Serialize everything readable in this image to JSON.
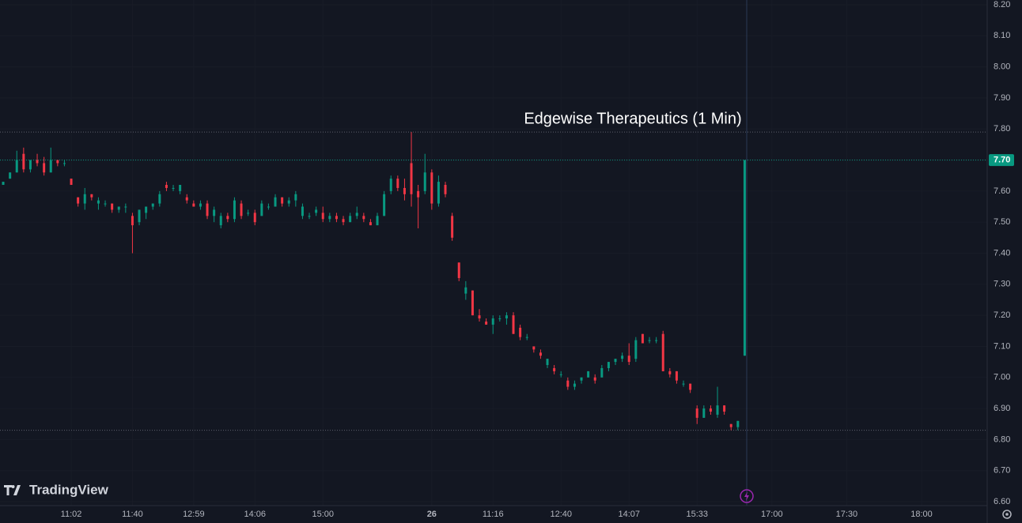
{
  "chart_data": {
    "type": "candlestick",
    "title": "Edgewise Therapeutics (1 Min)",
    "brand": "TradingView",
    "up_color": "#089981",
    "down_color": "#f23645",
    "candles": [
      [
        7.62,
        7.63,
        7.62,
        7.63
      ],
      [
        7.64,
        7.66,
        7.64,
        7.66
      ],
      [
        7.66,
        7.73,
        7.66,
        7.7
      ],
      [
        7.72,
        7.74,
        7.66,
        7.67
      ],
      [
        7.67,
        7.7,
        7.66,
        7.7
      ],
      [
        7.7,
        7.72,
        7.68,
        7.69
      ],
      [
        7.69,
        7.71,
        7.65,
        7.66
      ],
      [
        7.66,
        7.74,
        7.66,
        7.7
      ],
      [
        7.7,
        7.7,
        7.68,
        7.69
      ],
      [
        7.69,
        7.7,
        7.68,
        7.69
      ],
      [
        7.64,
        7.64,
        7.62,
        7.62
      ],
      [
        7.58,
        7.58,
        7.55,
        7.56
      ],
      [
        7.56,
        7.61,
        7.54,
        7.59
      ],
      [
        7.59,
        7.59,
        7.57,
        7.58
      ],
      [
        7.56,
        7.58,
        7.54,
        7.57
      ],
      [
        7.56,
        7.57,
        7.55,
        7.56
      ],
      [
        7.56,
        7.56,
        7.53,
        7.54
      ],
      [
        7.54,
        7.55,
        7.53,
        7.55
      ],
      [
        7.55,
        7.56,
        7.53,
        7.55
      ],
      [
        7.52,
        7.53,
        7.4,
        7.49
      ],
      [
        7.5,
        7.54,
        7.49,
        7.54
      ],
      [
        7.53,
        7.55,
        7.51,
        7.55
      ],
      [
        7.55,
        7.56,
        7.54,
        7.56
      ],
      [
        7.56,
        7.6,
        7.55,
        7.59
      ],
      [
        7.62,
        7.63,
        7.6,
        7.61
      ],
      [
        7.61,
        7.62,
        7.6,
        7.61
      ],
      [
        7.6,
        7.62,
        7.59,
        7.62
      ],
      [
        7.58,
        7.59,
        7.56,
        7.57
      ],
      [
        7.56,
        7.57,
        7.55,
        7.55
      ],
      [
        7.55,
        7.57,
        7.54,
        7.56
      ],
      [
        7.56,
        7.57,
        7.51,
        7.52
      ],
      [
        7.52,
        7.55,
        7.5,
        7.54
      ],
      [
        7.49,
        7.53,
        7.48,
        7.52
      ],
      [
        7.52,
        7.53,
        7.5,
        7.51
      ],
      [
        7.51,
        7.58,
        7.5,
        7.57
      ],
      [
        7.56,
        7.57,
        7.51,
        7.52
      ],
      [
        7.53,
        7.54,
        7.52,
        7.53
      ],
      [
        7.53,
        7.54,
        7.49,
        7.5
      ],
      [
        7.52,
        7.57,
        7.52,
        7.56
      ],
      [
        7.55,
        7.56,
        7.54,
        7.55
      ],
      [
        7.55,
        7.59,
        7.55,
        7.58
      ],
      [
        7.58,
        7.58,
        7.55,
        7.56
      ],
      [
        7.56,
        7.58,
        7.55,
        7.57
      ],
      [
        7.57,
        7.6,
        7.55,
        7.59
      ],
      [
        7.52,
        7.56,
        7.51,
        7.55
      ],
      [
        7.52,
        7.53,
        7.51,
        7.52
      ],
      [
        7.53,
        7.55,
        7.52,
        7.54
      ],
      [
        7.53,
        7.55,
        7.5,
        7.51
      ],
      [
        7.51,
        7.53,
        7.5,
        7.52
      ],
      [
        7.52,
        7.53,
        7.5,
        7.51
      ],
      [
        7.51,
        7.52,
        7.49,
        7.5
      ],
      [
        7.5,
        7.53,
        7.5,
        7.52
      ],
      [
        7.52,
        7.55,
        7.51,
        7.53
      ],
      [
        7.52,
        7.53,
        7.5,
        7.51
      ],
      [
        7.5,
        7.51,
        7.49,
        7.49
      ],
      [
        7.49,
        7.53,
        7.49,
        7.52
      ],
      [
        7.52,
        7.6,
        7.52,
        7.59
      ],
      [
        7.6,
        7.65,
        7.59,
        7.64
      ],
      [
        7.64,
        7.65,
        7.6,
        7.61
      ],
      [
        7.61,
        7.64,
        7.57,
        7.59
      ],
      [
        7.69,
        7.79,
        7.55,
        7.59
      ],
      [
        7.6,
        7.62,
        7.48,
        7.58
      ],
      [
        7.6,
        7.72,
        7.59,
        7.66
      ],
      [
        7.66,
        7.67,
        7.54,
        7.56
      ],
      [
        7.56,
        7.65,
        7.55,
        7.63
      ],
      [
        7.62,
        7.63,
        7.58,
        7.59
      ],
      [
        7.52,
        7.53,
        7.44,
        7.45
      ],
      [
        7.37,
        7.37,
        7.31,
        7.32
      ],
      [
        7.27,
        7.31,
        7.25,
        7.29
      ],
      [
        7.28,
        7.28,
        7.2,
        7.2
      ],
      [
        7.2,
        7.22,
        7.18,
        7.19
      ],
      [
        7.18,
        7.19,
        7.17,
        7.17
      ],
      [
        7.17,
        7.2,
        7.14,
        7.19
      ],
      [
        7.19,
        7.2,
        7.18,
        7.19
      ],
      [
        7.19,
        7.21,
        7.17,
        7.2
      ],
      [
        7.2,
        7.21,
        7.14,
        7.14
      ],
      [
        7.16,
        7.17,
        7.12,
        7.13
      ],
      [
        7.13,
        7.14,
        7.12,
        7.13
      ],
      [
        7.1,
        7.1,
        7.08,
        7.09
      ],
      [
        7.08,
        7.09,
        7.06,
        7.07
      ],
      [
        7.04,
        7.06,
        7.03,
        7.06
      ],
      [
        7.03,
        7.04,
        7.01,
        7.02
      ],
      [
        7.01,
        7.02,
        7.0,
        7.01
      ],
      [
        6.99,
        7.0,
        6.96,
        6.97
      ],
      [
        6.97,
        6.99,
        6.96,
        6.98
      ],
      [
        6.99,
        7.0,
        6.98,
        7.0
      ],
      [
        7.0,
        7.02,
        7.0,
        7.02
      ],
      [
        7.0,
        7.01,
        6.98,
        6.99
      ],
      [
        7.0,
        7.04,
        7.0,
        7.03
      ],
      [
        7.03,
        7.05,
        7.02,
        7.05
      ],
      [
        7.05,
        7.06,
        7.04,
        7.06
      ],
      [
        7.06,
        7.08,
        7.05,
        7.07
      ],
      [
        7.07,
        7.11,
        7.04,
        7.05
      ],
      [
        7.06,
        7.13,
        7.05,
        7.12
      ],
      [
        7.14,
        7.14,
        7.11,
        7.11
      ],
      [
        7.12,
        7.13,
        7.11,
        7.12
      ],
      [
        7.12,
        7.13,
        7.11,
        7.12
      ],
      [
        7.14,
        7.15,
        7.02,
        7.02
      ],
      [
        7.02,
        7.03,
        7.0,
        7.01
      ],
      [
        7.02,
        7.02,
        6.98,
        6.99
      ],
      [
        6.98,
        6.99,
        6.97,
        6.98
      ],
      [
        6.98,
        6.98,
        6.95,
        6.96
      ],
      [
        6.9,
        6.91,
        6.85,
        6.87
      ],
      [
        6.87,
        6.91,
        6.87,
        6.9
      ],
      [
        6.9,
        6.91,
        6.88,
        6.89
      ],
      [
        6.88,
        6.97,
        6.87,
        6.91
      ],
      [
        6.91,
        6.91,
        6.88,
        6.89
      ],
      [
        6.85,
        6.85,
        6.83,
        6.84
      ],
      [
        6.84,
        6.86,
        6.83,
        6.86
      ],
      [
        7.07,
        7.7,
        7.07,
        7.7
      ]
    ],
    "xlim": [
      -0.47,
      144.65
    ],
    "xticks": [
      {
        "value": 10,
        "label": "11:02"
      },
      {
        "value": 19,
        "label": "11:40"
      },
      {
        "value": 28,
        "label": "12:59"
      },
      {
        "value": 37,
        "label": "14:06"
      },
      {
        "value": 47,
        "label": "15:00"
      },
      {
        "value": 63,
        "label": "26"
      },
      {
        "value": 72,
        "label": "11:16"
      },
      {
        "value": 82,
        "label": "12:40"
      },
      {
        "value": 92,
        "label": "14:07"
      },
      {
        "value": 102,
        "label": "15:33"
      },
      {
        "value": 113,
        "label": "17:00"
      },
      {
        "value": 124,
        "label": "17:30"
      },
      {
        "value": 135,
        "label": "18:00"
      }
    ],
    "ylim": [
      6.6,
      8.2
    ],
    "yticks": [
      {
        "value": 8.2,
        "label": "8.20"
      },
      {
        "value": 8.1,
        "label": "8.10"
      },
      {
        "value": 8.0,
        "label": "8.00"
      },
      {
        "value": 7.9,
        "label": "7.90"
      },
      {
        "value": 7.8,
        "label": "7.80"
      },
      {
        "value": 7.7,
        "label": "7.70"
      },
      {
        "value": 7.6,
        "label": "7.60"
      },
      {
        "value": 7.5,
        "label": "7.50"
      },
      {
        "value": 7.4,
        "label": "7.40"
      },
      {
        "value": 7.3,
        "label": "7.30"
      },
      {
        "value": 7.2,
        "label": "7.20"
      },
      {
        "value": 7.1,
        "label": "7.10"
      },
      {
        "value": 7.0,
        "label": "7.00"
      },
      {
        "value": 6.9,
        "label": "6.90"
      },
      {
        "value": 6.8,
        "label": "6.80"
      },
      {
        "value": 6.7,
        "label": "6.70"
      },
      {
        "value": 6.6,
        "label": "6.60"
      }
    ],
    "last_price": {
      "value": 7.7,
      "label": "7.70"
    },
    "high_line": 7.79,
    "low_line": 6.83
  }
}
